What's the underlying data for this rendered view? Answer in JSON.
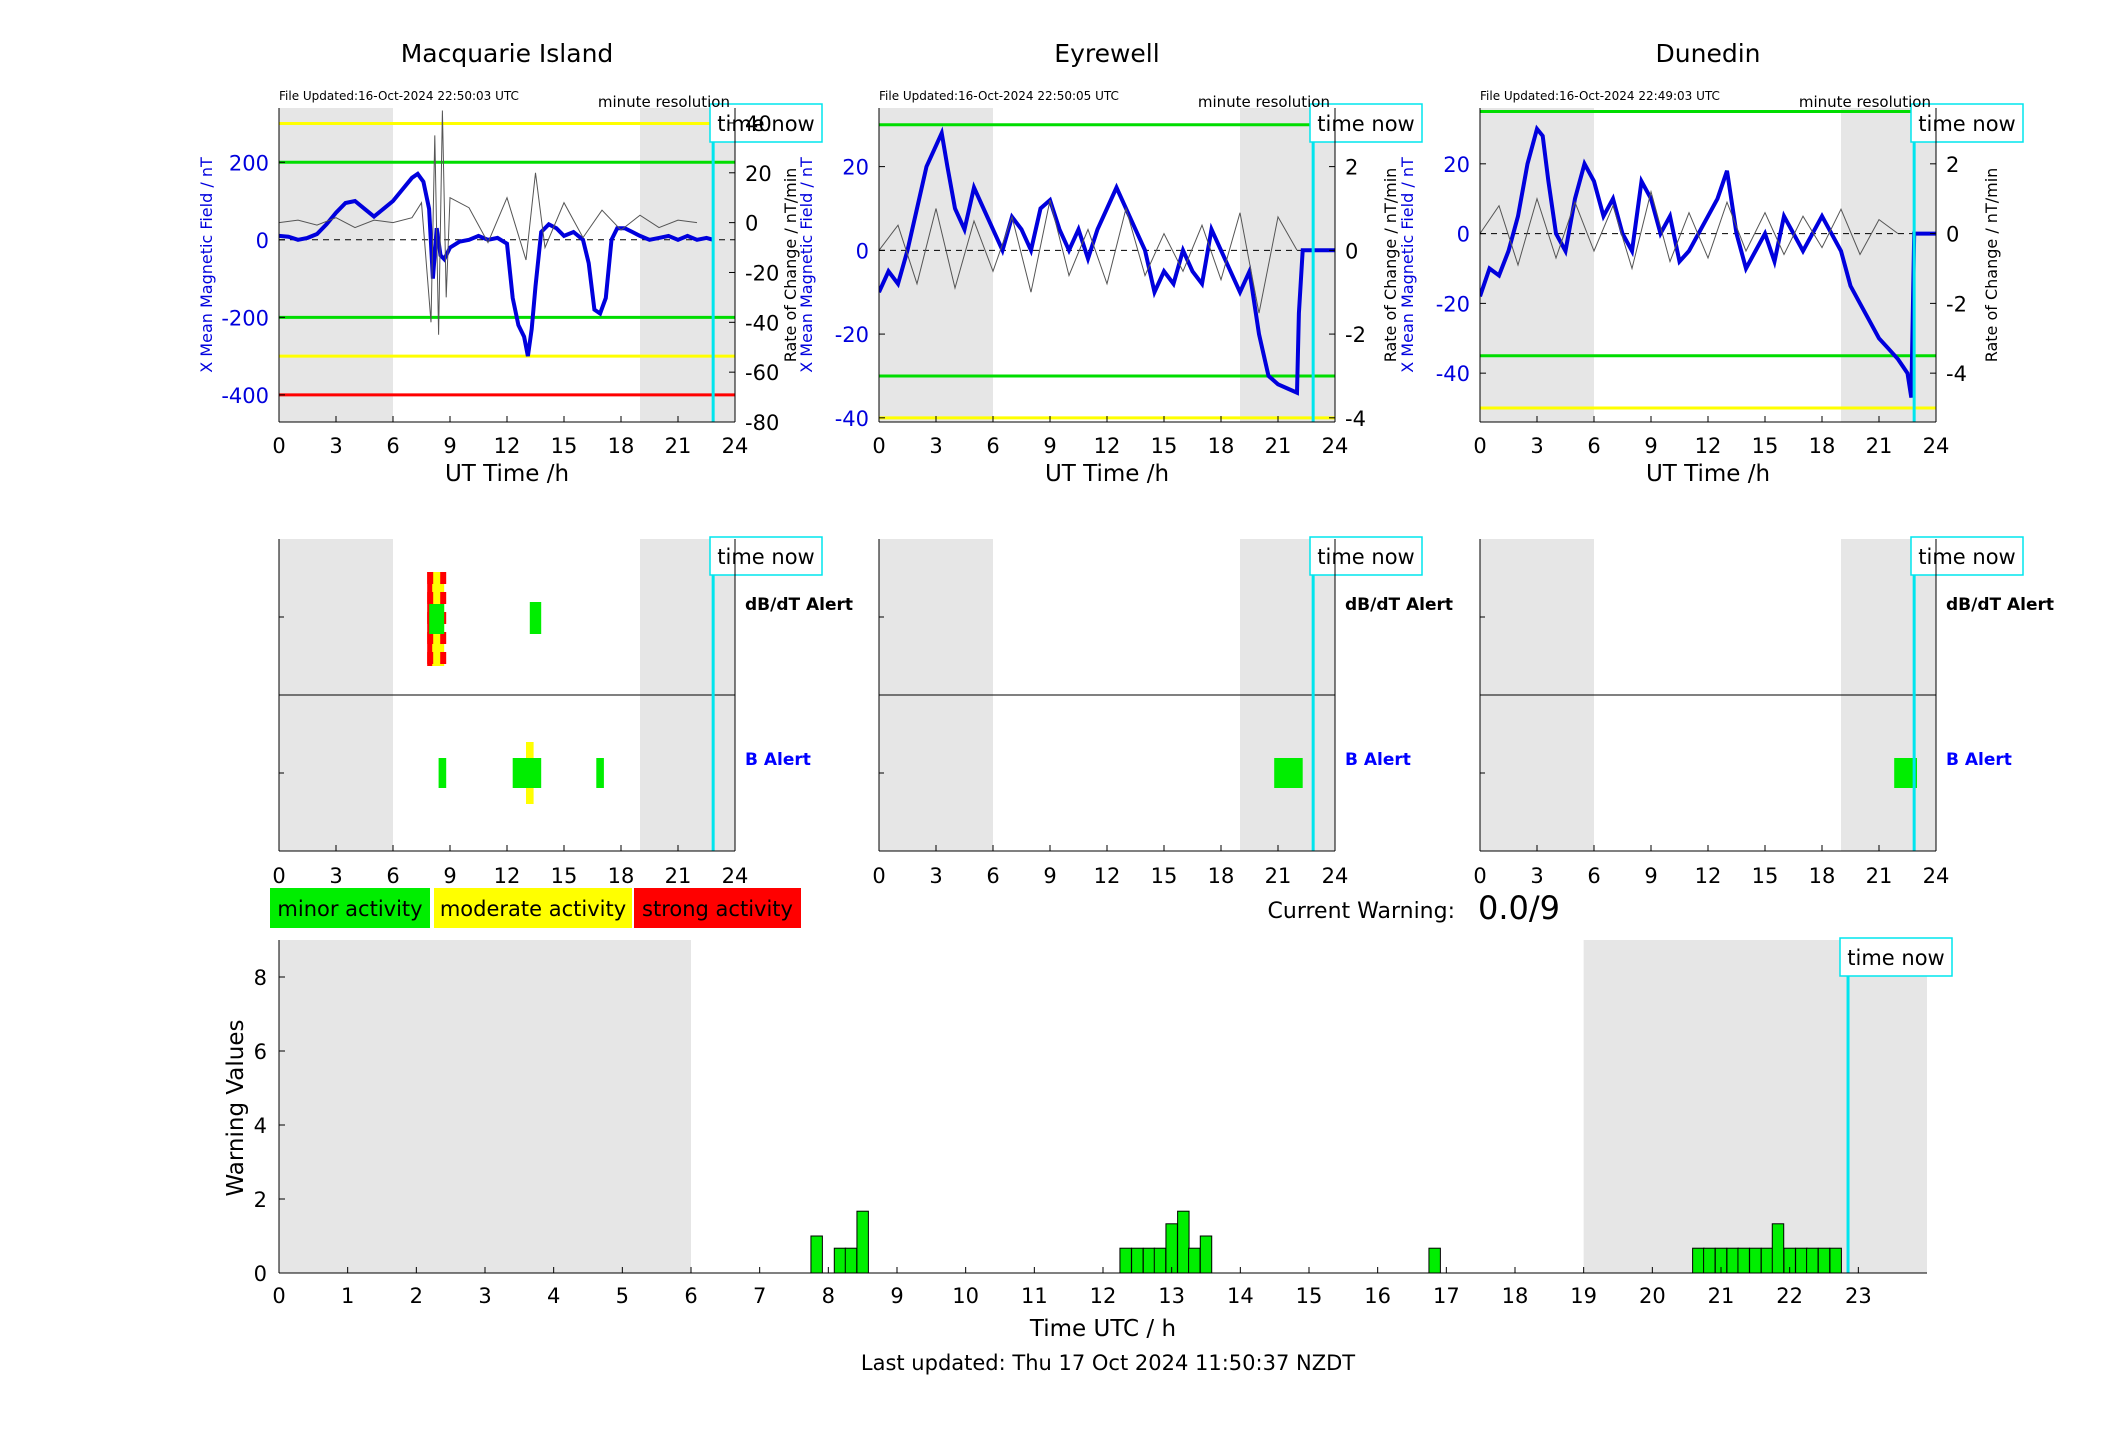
{
  "chart_data": [
    {
      "type": "line",
      "title": "Macquarie Island",
      "file_updated": "File Updated:16-Oct-2024 22:50:03 UTC",
      "resolution_note": "minute resolution",
      "time_now_label": "time now",
      "xlabel": "UT Time /h",
      "ylabel_left": "X Mean Magnetic Field / nT",
      "ylabel_right": "Rate of Change / nT/min",
      "xlim": [
        0,
        24
      ],
      "xticks": [
        0,
        3,
        6,
        9,
        12,
        15,
        18,
        21,
        24
      ],
      "ylim_left": [
        -470,
        340
      ],
      "yticks_left": [
        -400,
        -200,
        0,
        200
      ],
      "ylim_right": [
        -80,
        46
      ],
      "yticks_right": [
        -80,
        -60,
        -40,
        -20,
        0,
        20,
        40
      ],
      "night_shading_hours": [
        [
          0,
          6
        ],
        [
          19,
          24
        ]
      ],
      "time_now_hour": 22.85,
      "thresholds": [
        {
          "value": 300,
          "color": "#ffff00"
        },
        {
          "value": 200,
          "color": "#00dd00"
        },
        {
          "value": -200,
          "color": "#00dd00"
        },
        {
          "value": -300,
          "color": "#ffff00"
        },
        {
          "value": -400,
          "color": "#ff0000"
        }
      ],
      "series": [
        {
          "axis": "left",
          "color": "#0000dd",
          "x": [
            0,
            0.5,
            1,
            1.5,
            2,
            2.5,
            3,
            3.5,
            4,
            4.5,
            5,
            5.5,
            6,
            6.5,
            7,
            7.3,
            7.6,
            7.9,
            8.1,
            8.3,
            8.5,
            8.7,
            9,
            9.5,
            10,
            10.5,
            11,
            11.5,
            12,
            12.3,
            12.6,
            12.9,
            13.1,
            13.3,
            13.5,
            13.8,
            14.2,
            14.6,
            15,
            15.5,
            16,
            16.3,
            16.6,
            16.9,
            17.2,
            17.5,
            17.8,
            18.2,
            18.6,
            19,
            19.5,
            20,
            20.5,
            21,
            21.5,
            22,
            22.5,
            22.85
          ],
          "y": [
            10,
            8,
            0,
            5,
            15,
            40,
            70,
            95,
            100,
            80,
            60,
            80,
            100,
            130,
            160,
            170,
            150,
            80,
            -100,
            30,
            -40,
            -50,
            -20,
            -5,
            0,
            10,
            0,
            5,
            -10,
            -150,
            -220,
            -250,
            -300,
            -230,
            -120,
            20,
            40,
            30,
            10,
            20,
            0,
            -60,
            -180,
            -190,
            -150,
            0,
            30,
            30,
            20,
            10,
            0,
            5,
            10,
            0,
            10,
            0,
            5,
            0
          ]
        },
        {
          "axis": "right",
          "color": "#555555",
          "x": [
            0,
            1,
            2,
            3,
            4,
            5,
            6,
            7,
            7.5,
            8,
            8.2,
            8.4,
            8.6,
            8.8,
            9,
            10,
            11,
            12,
            13,
            13.5,
            14,
            15,
            16,
            17,
            18,
            19,
            20,
            21,
            22
          ],
          "y": [
            0,
            1,
            -1,
            2,
            -2,
            1,
            0,
            2,
            8,
            -40,
            35,
            -45,
            45,
            -30,
            10,
            6,
            -8,
            10,
            -15,
            20,
            -10,
            8,
            -6,
            5,
            -3,
            3,
            -2,
            1,
            0
          ]
        }
      ]
    },
    {
      "type": "line",
      "title": "Eyrewell",
      "file_updated": "File Updated:16-Oct-2024 22:50:05 UTC",
      "resolution_note": "minute resolution",
      "time_now_label": "time now",
      "xlabel": "UT Time /h",
      "ylabel_left": "X Mean Magnetic Field / nT",
      "ylabel_right": "Rate of Change / nT/min",
      "xlim": [
        0,
        24
      ],
      "xticks": [
        0,
        3,
        6,
        9,
        12,
        15,
        18,
        21,
        24
      ],
      "ylim_left": [
        -41,
        34
      ],
      "yticks_left": [
        -40,
        -20,
        0,
        20
      ],
      "ylim_right": [
        -4.1,
        3.4
      ],
      "yticks_right": [
        -4,
        -2,
        0,
        2
      ],
      "night_shading_hours": [
        [
          0,
          6
        ],
        [
          19,
          24
        ]
      ],
      "time_now_hour": 22.85,
      "thresholds": [
        {
          "value": 30,
          "color": "#00dd00"
        },
        {
          "value": -30,
          "color": "#00dd00"
        },
        {
          "value": -40,
          "color": "#ffff00"
        }
      ],
      "series": [
        {
          "axis": "left",
          "color": "#0000dd",
          "x": [
            0,
            0.5,
            1,
            1.5,
            2,
            2.5,
            3,
            3.3,
            3.6,
            4,
            4.5,
            5,
            5.5,
            6,
            6.5,
            7,
            7.5,
            8,
            8.5,
            9,
            9.5,
            10,
            10.5,
            11,
            11.5,
            12,
            12.5,
            13,
            13.5,
            14,
            14.5,
            15,
            15.5,
            16,
            16.5,
            17,
            17.5,
            18,
            18.5,
            19,
            19.5,
            20,
            20.5,
            21,
            21.5,
            22,
            22.1,
            22.3,
            22.85,
            24
          ],
          "y": [
            -10,
            -5,
            -8,
            0,
            10,
            20,
            25,
            28,
            20,
            10,
            5,
            15,
            10,
            5,
            0,
            8,
            5,
            0,
            10,
            12,
            5,
            0,
            5,
            -2,
            5,
            10,
            15,
            10,
            5,
            0,
            -10,
            -5,
            -8,
            0,
            -5,
            -8,
            5,
            0,
            -5,
            -10,
            -5,
            -20,
            -30,
            -32,
            -33,
            -34,
            -15,
            0,
            0,
            0
          ]
        },
        {
          "axis": "right",
          "color": "#555555",
          "x": [
            0,
            1,
            2,
            3,
            4,
            5,
            6,
            7,
            8,
            9,
            10,
            11,
            12,
            13,
            14,
            15,
            16,
            17,
            18,
            19,
            20,
            21,
            22
          ],
          "y": [
            0,
            0.6,
            -0.8,
            1,
            -0.9,
            0.7,
            -0.5,
            0.8,
            -1,
            1.2,
            -0.6,
            0.5,
            -0.8,
            1,
            -0.6,
            0.4,
            -0.5,
            0.6,
            -0.7,
            0.9,
            -1.5,
            0.8,
            0
          ]
        }
      ]
    },
    {
      "type": "line",
      "title": "Dunedin",
      "file_updated": "File Updated:16-Oct-2024 22:49:03 UTC",
      "resolution_note": "minute resolution",
      "time_now_label": "time now",
      "xlabel": "UT Time /h",
      "ylabel_left": "X Mean Magnetic Field / nT",
      "ylabel_right": "Rate of Change / nT/min",
      "xlim": [
        0,
        24
      ],
      "xticks": [
        0,
        3,
        6,
        9,
        12,
        15,
        18,
        21,
        24
      ],
      "ylim_left": [
        -54,
        36
      ],
      "yticks_left": [
        -40,
        -20,
        0,
        20
      ],
      "ylim_right": [
        -5.4,
        3.6
      ],
      "yticks_right": [
        -4,
        -2,
        0,
        2
      ],
      "night_shading_hours": [
        [
          0,
          6
        ],
        [
          19,
          24
        ]
      ],
      "time_now_hour": 22.85,
      "thresholds": [
        {
          "value": 35,
          "color": "#00dd00"
        },
        {
          "value": -35,
          "color": "#00dd00"
        },
        {
          "value": -50,
          "color": "#ffff00"
        }
      ],
      "series": [
        {
          "axis": "left",
          "color": "#0000dd",
          "x": [
            0,
            0.5,
            1,
            1.5,
            2,
            2.5,
            3,
            3.3,
            3.6,
            4,
            4.5,
            5,
            5.5,
            6,
            6.5,
            7,
            7.5,
            8,
            8.5,
            9,
            9.5,
            10,
            10.5,
            11,
            11.5,
            12,
            12.5,
            13,
            13.5,
            14,
            14.5,
            15,
            15.5,
            16,
            16.5,
            17,
            17.5,
            18,
            18.5,
            19,
            19.5,
            20,
            20.5,
            21,
            21.5,
            22,
            22.5,
            22.7,
            22.85,
            24
          ],
          "y": [
            -18,
            -10,
            -12,
            -5,
            5,
            20,
            30,
            28,
            15,
            0,
            -5,
            10,
            20,
            15,
            5,
            10,
            0,
            -5,
            15,
            10,
            0,
            5,
            -8,
            -5,
            0,
            5,
            10,
            18,
            0,
            -10,
            -5,
            0,
            -8,
            5,
            0,
            -5,
            0,
            5,
            0,
            -5,
            -15,
            -20,
            -25,
            -30,
            -33,
            -36,
            -40,
            -47,
            0,
            0
          ]
        },
        {
          "axis": "right",
          "color": "#555555",
          "x": [
            0,
            1,
            2,
            3,
            4,
            5,
            6,
            7,
            8,
            9,
            10,
            11,
            12,
            13,
            14,
            15,
            16,
            17,
            18,
            19,
            20,
            21,
            22
          ],
          "y": [
            0,
            0.8,
            -0.9,
            1,
            -0.7,
            0.9,
            -0.5,
            0.8,
            -1,
            1.2,
            -0.8,
            0.6,
            -0.7,
            0.9,
            -0.5,
            0.6,
            -0.6,
            0.5,
            -0.4,
            0.7,
            -0.6,
            0.4,
            0
          ]
        }
      ]
    },
    {
      "type": "bar",
      "title": "Alerts",
      "dbdt_label": "dB/dT Alert",
      "b_label": "B Alert",
      "time_now_label": "time now",
      "xticks": [
        0,
        3,
        6,
        9,
        12,
        15,
        18,
        21,
        24
      ],
      "night_shading_hours": [
        [
          0,
          6
        ],
        [
          19,
          24
        ]
      ],
      "time_now_hour": 22.85,
      "stations": [
        {
          "name": "Macquarie Island",
          "dbdt": [
            {
              "x0": 7.8,
              "x1": 8.8,
              "level": "strong"
            },
            {
              "x0": 13.2,
              "x1": 13.8,
              "level": "minor"
            }
          ],
          "b": [
            {
              "x0": 8.4,
              "x1": 8.8,
              "level": "minor"
            },
            {
              "x0": 12.3,
              "x1": 13.8,
              "level": "moderate"
            },
            {
              "x0": 16.7,
              "x1": 17.1,
              "level": "minor"
            }
          ]
        },
        {
          "name": "Eyrewell",
          "dbdt": [],
          "b": [
            {
              "x0": 20.8,
              "x1": 22.3,
              "level": "minor"
            }
          ]
        },
        {
          "name": "Dunedin",
          "dbdt": [],
          "b": [
            {
              "x0": 21.8,
              "x1": 23.0,
              "level": "minor"
            }
          ]
        }
      ],
      "legend": [
        {
          "label": "minor activity",
          "color": "#00ee00"
        },
        {
          "label": "moderate activity",
          "color": "#ffff00"
        },
        {
          "label": "strong activity",
          "color": "#ff0000"
        }
      ]
    },
    {
      "type": "bar",
      "title": "Current Warning",
      "current_warning_label": "Current Warning:",
      "current_warning_value": "0.0/9",
      "xlabel": "Time UTC / h",
      "ylabel": "Warning Values",
      "time_now_label": "time now",
      "xlim": [
        0,
        24
      ],
      "xticks": [
        0,
        1,
        2,
        3,
        4,
        5,
        6,
        7,
        8,
        9,
        10,
        11,
        12,
        13,
        14,
        15,
        16,
        17,
        18,
        19,
        20,
        21,
        22,
        23
      ],
      "ylim": [
        0,
        9
      ],
      "yticks": [
        0,
        2,
        4,
        6,
        8
      ],
      "night_shading_hours": [
        [
          0,
          6
        ],
        [
          19,
          24
        ]
      ],
      "time_now_hour": 22.85,
      "bar_width_hours": 0.1667,
      "x": [
        7.83,
        8.17,
        8.33,
        8.5,
        12.33,
        12.5,
        12.67,
        12.83,
        13.0,
        13.17,
        13.33,
        13.5,
        16.83,
        20.67,
        20.83,
        21.0,
        21.17,
        21.33,
        21.5,
        21.67,
        21.83,
        22.0,
        22.17,
        22.33,
        22.5,
        22.67
      ],
      "values": [
        1.0,
        0.67,
        0.67,
        1.67,
        0.67,
        0.67,
        0.67,
        0.67,
        1.33,
        1.67,
        0.67,
        1.0,
        0.67,
        0.67,
        0.67,
        0.67,
        0.67,
        0.67,
        0.67,
        0.67,
        1.33,
        0.67,
        0.67,
        0.67,
        0.67,
        0.67
      ],
      "color": "#00ee00"
    }
  ],
  "footer": {
    "last_updated": "Last updated: Thu 17 Oct 2024 11:50:37 NZDT"
  }
}
